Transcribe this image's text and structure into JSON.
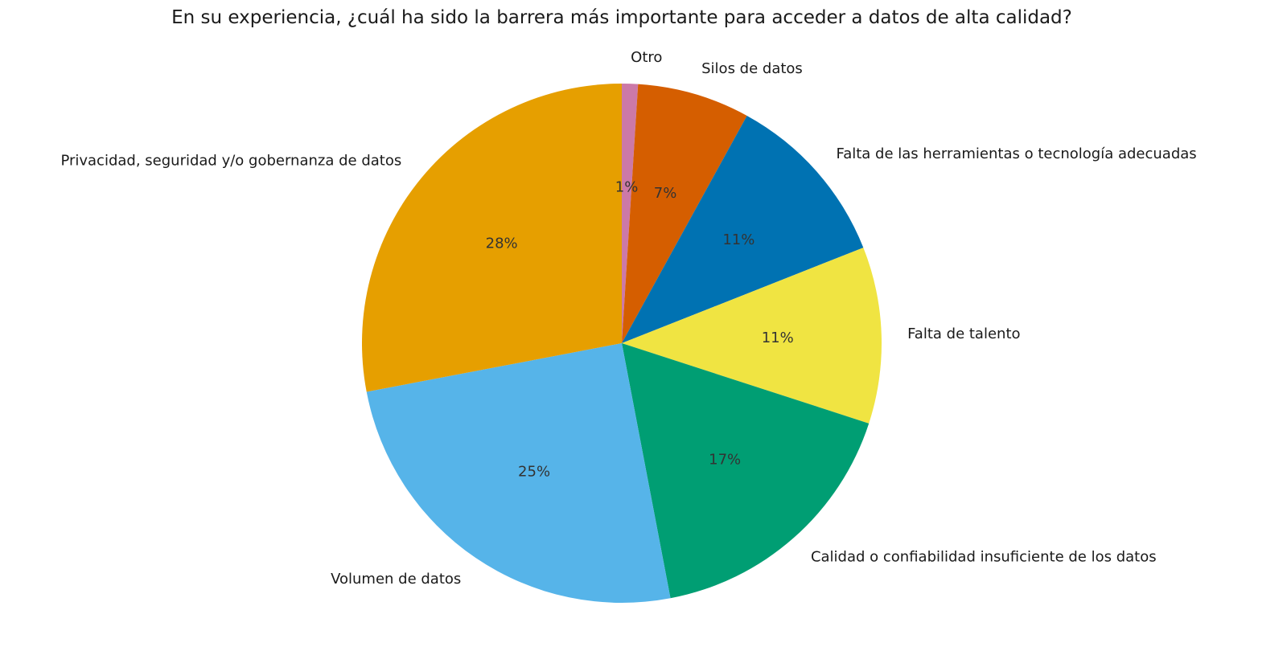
{
  "chart_data": {
    "type": "pie",
    "title": "En su experiencia, ¿cuál ha sido la barrera más importante para acceder a datos de alta calidad?",
    "start": "top",
    "direction": "clockwise",
    "categories": [
      "Otro",
      "Silos de datos",
      "Falta de las herramientas o tecnología adecuadas",
      "Falta de talento",
      "Calidad o confiabilidad insuficiente de los datos",
      "Volumen de datos",
      "Privacidad, seguridad y/o gobernanza de datos"
    ],
    "values": [
      1,
      7,
      11,
      11,
      17,
      25,
      28
    ],
    "pct_labels": [
      "1%",
      "7%",
      "11%",
      "11%",
      "17%",
      "25%",
      "28%"
    ],
    "colors": [
      "#CC79A7",
      "#D55E00",
      "#0072B2",
      "#F0E442",
      "#009E73",
      "#56B4E9",
      "#E69F00"
    ]
  }
}
